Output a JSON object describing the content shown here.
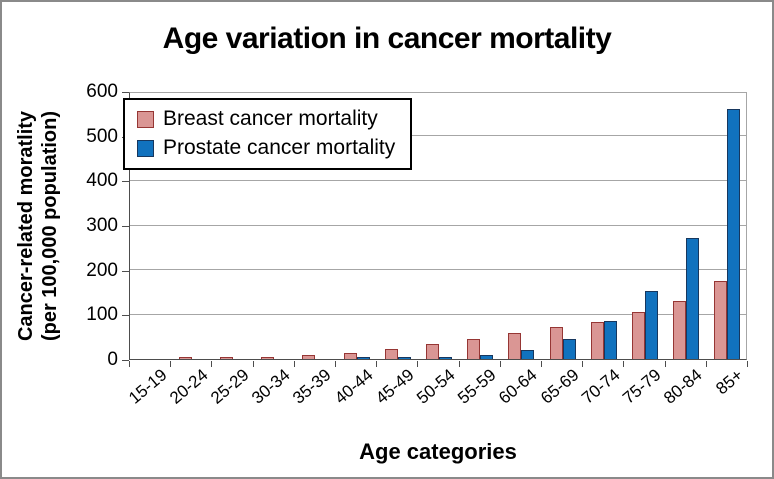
{
  "frame": {
    "border_color": "#8a8a8a",
    "background": "#ffffff",
    "grid_color": "#a6a6a6",
    "axis_color": "#4d4d4d"
  },
  "chart_data": {
    "type": "bar",
    "title": "Age variation in cancer mortality",
    "xlabel": "Age categories",
    "ylabel_line1": "Cancer-related moratlity",
    "ylabel_line2": "(per 100,000 population)",
    "categories": [
      "15-19",
      "20-24",
      "25-29",
      "30-34",
      "35-39",
      "40-44",
      "45-49",
      "50-54",
      "55-59",
      "60-64",
      "65-69",
      "70-74",
      "75-79",
      "80-84",
      "85+"
    ],
    "series": [
      {
        "name": "Breast cancer mortality",
        "color": "#da9694",
        "border_color": "#963634",
        "values": [
          0,
          2,
          3,
          4,
          8,
          14,
          23,
          33,
          45,
          58,
          72,
          83,
          105,
          130,
          175
        ]
      },
      {
        "name": "Prostate cancer mortality",
        "color": "#1172be",
        "border_color": "#17375e",
        "values": [
          0,
          0,
          0,
          0,
          0,
          1,
          2,
          5,
          10,
          20,
          45,
          86,
          153,
          270,
          560
        ]
      }
    ],
    "ylim": [
      0,
      600
    ],
    "y_ticks": [
      0,
      100,
      200,
      300,
      400,
      500,
      600
    ],
    "grid": true,
    "legend_position": "top-left-inside"
  }
}
